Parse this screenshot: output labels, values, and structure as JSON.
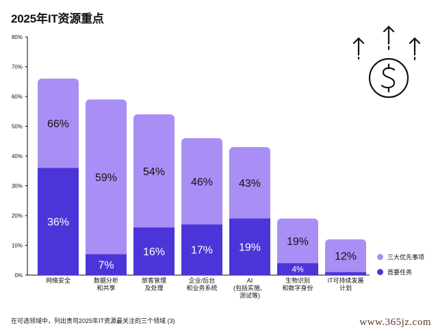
{
  "title": "2025年IT资源重点",
  "footnote": "在可选领域中，列出贵司2025年IT资源最关注的三个领域 (3)",
  "watermark": "www.365jz.com",
  "colors": {
    "top3": "#a98ff5",
    "first": "#4c35d8",
    "axis": "#000000"
  },
  "icons": {
    "decor": "dollar-arrows-icon"
  },
  "chart_data": {
    "type": "bar",
    "stacked": false,
    "overlaid": true,
    "title": "2025年IT资源重点",
    "xlabel": "",
    "ylabel": "",
    "ylim": [
      0,
      80
    ],
    "yticks": [
      "0%",
      "10%",
      "20%",
      "30%",
      "40%",
      "50%",
      "60%",
      "70%",
      "80%"
    ],
    "grid": false,
    "legend_position": "bottom-right",
    "categories": [
      [
        "网络安全"
      ],
      [
        "数据分析",
        "和共享"
      ],
      [
        "旅客管理",
        "及处理"
      ],
      [
        "企业/后台",
        "和业务系统"
      ],
      [
        "AI",
        "(包括实施、",
        "测试等)"
      ],
      [
        "生物识别",
        "和数字身份"
      ],
      [
        "IT可持续发展",
        "计划"
      ]
    ],
    "series": [
      {
        "name": "三大优先事项",
        "values": [
          66,
          59,
          54,
          46,
          43,
          19,
          12
        ],
        "labels": [
          "66%",
          "59%",
          "54%",
          "46%",
          "43%",
          "19%",
          "12%"
        ]
      },
      {
        "name": "首要任务",
        "values": [
          36,
          7,
          16,
          17,
          19,
          4,
          1
        ],
        "labels": [
          "36%",
          "7%",
          "16%",
          "17%",
          "19%",
          "4%",
          ""
        ]
      }
    ]
  }
}
